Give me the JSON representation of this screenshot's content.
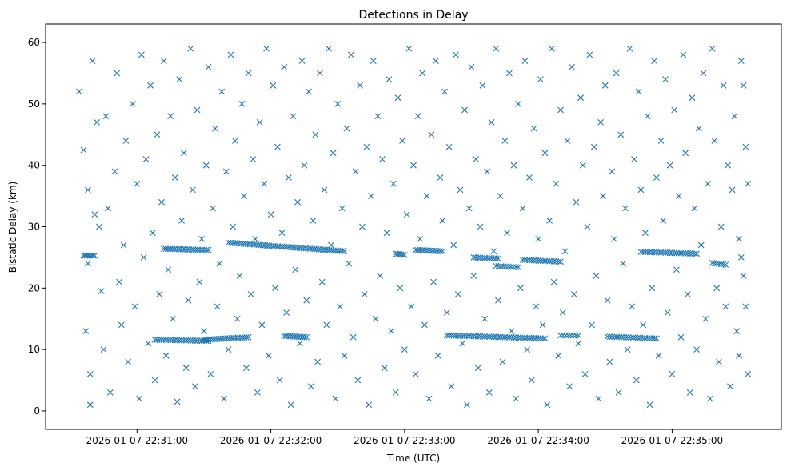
{
  "chart_data": {
    "type": "scatter",
    "title": "Detections in Delay",
    "xlabel": "Time (UTC)",
    "ylabel": "Bistatic Delay (km)",
    "x_unit": "seconds after 2026-01-07 22:30:00",
    "xlim": [
      19,
      349
    ],
    "ylim": [
      -3,
      63
    ],
    "grid": false,
    "marker": "x",
    "color": "#1f77b4",
    "xticks": [
      {
        "value": 60,
        "label": "2026-01-07 22:31:00"
      },
      {
        "value": 120,
        "label": "2026-01-07 22:32:00"
      },
      {
        "value": 180,
        "label": "2026-01-07 22:33:00"
      },
      {
        "value": 240,
        "label": "2026-01-07 22:34:00"
      },
      {
        "value": 300,
        "label": "2026-01-07 22:35:00"
      }
    ],
    "yticks": [
      {
        "value": 0,
        "label": "0"
      },
      {
        "value": 10,
        "label": "10"
      },
      {
        "value": 20,
        "label": "20"
      },
      {
        "value": 30,
        "label": "30"
      },
      {
        "value": 40,
        "label": "40"
      },
      {
        "value": 50,
        "label": "50"
      },
      {
        "value": 60,
        "label": "60"
      }
    ],
    "tracks": [
      {
        "t": [
          36,
          41
        ],
        "y": [
          25.3,
          25.3
        ],
        "n": 8
      },
      {
        "t": [
          72,
          92
        ],
        "y": [
          26.4,
          26.2
        ],
        "n": 22
      },
      {
        "t": [
          101,
          153
        ],
        "y": [
          27.4,
          26.0
        ],
        "n": 55
      },
      {
        "t": [
          176,
          180
        ],
        "y": [
          25.6,
          25.4
        ],
        "n": 6
      },
      {
        "t": [
          185,
          197
        ],
        "y": [
          26.2,
          26.0
        ],
        "n": 14
      },
      {
        "t": [
          211,
          222
        ],
        "y": [
          25.0,
          24.8
        ],
        "n": 12
      },
      {
        "t": [
          221,
          231
        ],
        "y": [
          23.6,
          23.4
        ],
        "n": 10
      },
      {
        "t": [
          233,
          250
        ],
        "y": [
          24.6,
          24.3
        ],
        "n": 18
      },
      {
        "t": [
          286,
          311
        ],
        "y": [
          25.9,
          25.6
        ],
        "n": 26
      },
      {
        "t": [
          318,
          324
        ],
        "y": [
          24.1,
          23.8
        ],
        "n": 7
      },
      {
        "t": [
          68,
          92
        ],
        "y": [
          11.6,
          11.4
        ],
        "n": 25
      },
      {
        "t": [
          90,
          110
        ],
        "y": [
          11.6,
          12.0
        ],
        "n": 22
      },
      {
        "t": [
          126,
          136
        ],
        "y": [
          12.2,
          12.0
        ],
        "n": 12
      },
      {
        "t": [
          199,
          243
        ],
        "y": [
          12.3,
          11.8
        ],
        "n": 45
      },
      {
        "t": [
          250,
          258
        ],
        "y": [
          12.3,
          12.3
        ],
        "n": 8
      },
      {
        "t": [
          271,
          293
        ],
        "y": [
          12.1,
          11.8
        ],
        "n": 22
      }
    ],
    "points": [
      [
        34,
        52
      ],
      [
        36,
        42.5
      ],
      [
        37,
        13
      ],
      [
        38,
        36
      ],
      [
        38,
        24
      ],
      [
        39,
        6
      ],
      [
        39,
        1
      ],
      [
        40,
        57
      ],
      [
        41,
        32
      ],
      [
        42,
        47
      ],
      [
        43,
        30
      ],
      [
        44,
        19.5
      ],
      [
        45,
        10
      ],
      [
        46,
        48
      ],
      [
        47,
        33
      ],
      [
        48,
        3
      ],
      [
        50,
        39
      ],
      [
        51,
        55
      ],
      [
        52,
        21
      ],
      [
        53,
        14
      ],
      [
        54,
        27
      ],
      [
        55,
        44
      ],
      [
        56,
        8
      ],
      [
        58,
        50
      ],
      [
        59,
        17
      ],
      [
        60,
        37
      ],
      [
        61,
        2
      ],
      [
        62,
        58
      ],
      [
        63,
        25
      ],
      [
        64,
        41
      ],
      [
        65,
        11
      ],
      [
        66,
        53
      ],
      [
        67,
        29
      ],
      [
        68,
        5
      ],
      [
        69,
        45
      ],
      [
        70,
        19
      ],
      [
        71,
        34
      ],
      [
        72,
        57
      ],
      [
        73,
        9
      ],
      [
        74,
        23
      ],
      [
        75,
        48
      ],
      [
        76,
        15
      ],
      [
        77,
        38
      ],
      [
        78,
        1.5
      ],
      [
        79,
        54
      ],
      [
        80,
        31
      ],
      [
        81,
        42
      ],
      [
        82,
        7
      ],
      [
        83,
        18
      ],
      [
        84,
        59
      ],
      [
        85,
        36
      ],
      [
        86,
        4
      ],
      [
        87,
        49
      ],
      [
        88,
        21
      ],
      [
        89,
        28
      ],
      [
        90,
        13
      ],
      [
        91,
        40
      ],
      [
        92,
        56
      ],
      [
        93,
        6
      ],
      [
        94,
        33
      ],
      [
        95,
        46
      ],
      [
        96,
        17
      ],
      [
        97,
        24
      ],
      [
        98,
        52
      ],
      [
        99,
        2
      ],
      [
        100,
        39
      ],
      [
        101,
        10
      ],
      [
        102,
        58
      ],
      [
        103,
        30
      ],
      [
        104,
        44
      ],
      [
        105,
        15
      ],
      [
        106,
        22
      ],
      [
        107,
        50
      ],
      [
        108,
        35
      ],
      [
        109,
        7
      ],
      [
        110,
        55
      ],
      [
        111,
        19
      ],
      [
        112,
        41
      ],
      [
        113,
        28
      ],
      [
        114,
        3
      ],
      [
        115,
        47
      ],
      [
        116,
        14
      ],
      [
        117,
        37
      ],
      [
        118,
        59
      ],
      [
        119,
        9
      ],
      [
        120,
        32
      ],
      [
        121,
        53
      ],
      [
        122,
        20
      ],
      [
        123,
        43
      ],
      [
        124,
        5
      ],
      [
        125,
        29
      ],
      [
        126,
        56
      ],
      [
        127,
        16
      ],
      [
        128,
        38
      ],
      [
        129,
        1
      ],
      [
        130,
        48
      ],
      [
        131,
        23
      ],
      [
        132,
        34
      ],
      [
        133,
        11
      ],
      [
        134,
        57
      ],
      [
        135,
        40
      ],
      [
        136,
        18
      ],
      [
        137,
        52
      ],
      [
        138,
        4
      ],
      [
        139,
        31
      ],
      [
        140,
        45
      ],
      [
        141,
        8
      ],
      [
        142,
        55
      ],
      [
        143,
        21
      ],
      [
        144,
        36
      ],
      [
        145,
        14
      ],
      [
        146,
        59
      ],
      [
        147,
        27
      ],
      [
        148,
        42
      ],
      [
        149,
        2
      ],
      [
        150,
        50
      ],
      [
        151,
        17
      ],
      [
        152,
        33
      ],
      [
        153,
        9
      ],
      [
        154,
        46
      ],
      [
        155,
        24
      ],
      [
        156,
        58
      ],
      [
        157,
        12
      ],
      [
        158,
        39
      ],
      [
        159,
        5
      ],
      [
        160,
        53
      ],
      [
        161,
        30
      ],
      [
        162,
        19
      ],
      [
        163,
        43
      ],
      [
        164,
        1
      ],
      [
        165,
        35
      ],
      [
        166,
        57
      ],
      [
        167,
        15
      ],
      [
        168,
        48
      ],
      [
        169,
        22
      ],
      [
        170,
        41
      ],
      [
        171,
        7
      ],
      [
        172,
        29
      ],
      [
        173,
        54
      ],
      [
        174,
        13
      ],
      [
        175,
        37
      ],
      [
        176,
        3
      ],
      [
        177,
        51
      ],
      [
        178,
        20
      ],
      [
        179,
        44
      ],
      [
        180,
        10
      ],
      [
        181,
        32
      ],
      [
        182,
        59
      ],
      [
        183,
        17
      ],
      [
        184,
        40
      ],
      [
        185,
        6
      ],
      [
        186,
        48
      ],
      [
        187,
        28
      ],
      [
        188,
        55
      ],
      [
        189,
        14
      ],
      [
        190,
        35
      ],
      [
        191,
        2
      ],
      [
        192,
        45
      ],
      [
        193,
        21
      ],
      [
        194,
        57
      ],
      [
        195,
        9
      ],
      [
        196,
        38
      ],
      [
        197,
        31
      ],
      [
        198,
        52
      ],
      [
        199,
        16
      ],
      [
        200,
        43
      ],
      [
        201,
        4
      ],
      [
        202,
        27
      ],
      [
        203,
        58
      ],
      [
        204,
        19
      ],
      [
        205,
        36
      ],
      [
        206,
        11
      ],
      [
        207,
        49
      ],
      [
        208,
        1
      ],
      [
        209,
        33
      ],
      [
        210,
        56
      ],
      [
        211,
        22
      ],
      [
        212,
        41
      ],
      [
        213,
        7
      ],
      [
        214,
        30
      ],
      [
        215,
        53
      ],
      [
        216,
        15
      ],
      [
        217,
        39
      ],
      [
        218,
        3
      ],
      [
        219,
        47
      ],
      [
        220,
        26
      ],
      [
        221,
        59
      ],
      [
        222,
        18
      ],
      [
        223,
        35
      ],
      [
        224,
        8
      ],
      [
        225,
        44
      ],
      [
        226,
        29
      ],
      [
        227,
        55
      ],
      [
        228,
        13
      ],
      [
        229,
        40
      ],
      [
        230,
        2
      ],
      [
        231,
        50
      ],
      [
        232,
        20
      ],
      [
        233,
        33
      ],
      [
        234,
        57
      ],
      [
        235,
        10
      ],
      [
        236,
        38
      ],
      [
        237,
        5
      ],
      [
        238,
        46
      ],
      [
        239,
        17
      ],
      [
        240,
        28
      ],
      [
        241,
        54
      ],
      [
        242,
        14
      ],
      [
        243,
        42
      ],
      [
        244,
        1
      ],
      [
        245,
        31
      ],
      [
        246,
        59
      ],
      [
        247,
        21
      ],
      [
        248,
        37
      ],
      [
        249,
        9
      ],
      [
        250,
        49
      ],
      [
        251,
        16
      ],
      [
        252,
        26
      ],
      [
        253,
        44
      ],
      [
        254,
        4
      ],
      [
        255,
        56
      ],
      [
        256,
        19
      ],
      [
        257,
        34
      ],
      [
        258,
        11
      ],
      [
        259,
        51
      ],
      [
        260,
        40
      ],
      [
        261,
        6
      ],
      [
        262,
        30
      ],
      [
        263,
        58
      ],
      [
        264,
        14
      ],
      [
        265,
        43
      ],
      [
        266,
        22
      ],
      [
        267,
        2
      ],
      [
        268,
        47
      ],
      [
        269,
        35
      ],
      [
        270,
        53
      ],
      [
        271,
        18
      ],
      [
        272,
        8
      ],
      [
        273,
        39
      ],
      [
        274,
        28
      ],
      [
        275,
        55
      ],
      [
        276,
        3
      ],
      [
        277,
        45
      ],
      [
        278,
        24
      ],
      [
        279,
        33
      ],
      [
        280,
        10
      ],
      [
        281,
        59
      ],
      [
        282,
        17
      ],
      [
        283,
        41
      ],
      [
        284,
        5
      ],
      [
        285,
        52
      ],
      [
        286,
        36
      ],
      [
        287,
        14
      ],
      [
        288,
        29
      ],
      [
        289,
        48
      ],
      [
        290,
        1
      ],
      [
        291,
        20
      ],
      [
        292,
        57
      ],
      [
        293,
        38
      ],
      [
        294,
        9
      ],
      [
        295,
        44
      ],
      [
        296,
        31
      ],
      [
        297,
        54
      ],
      [
        298,
        16
      ],
      [
        299,
        40
      ],
      [
        300,
        6
      ],
      [
        301,
        49
      ],
      [
        302,
        23
      ],
      [
        303,
        35
      ],
      [
        304,
        12
      ],
      [
        305,
        58
      ],
      [
        306,
        42
      ],
      [
        307,
        19
      ],
      [
        308,
        3
      ],
      [
        309,
        51
      ],
      [
        310,
        33
      ],
      [
        311,
        10
      ],
      [
        312,
        46
      ],
      [
        313,
        27
      ],
      [
        314,
        55
      ],
      [
        315,
        15
      ],
      [
        316,
        37
      ],
      [
        317,
        2
      ],
      [
        318,
        59
      ],
      [
        319,
        44
      ],
      [
        320,
        20
      ],
      [
        321,
        8
      ],
      [
        322,
        30
      ],
      [
        323,
        53
      ],
      [
        324,
        17
      ],
      [
        325,
        40
      ],
      [
        326,
        4
      ],
      [
        327,
        36
      ],
      [
        328,
        48
      ],
      [
        329,
        13
      ],
      [
        330,
        28
      ],
      [
        331,
        57
      ],
      [
        332,
        22
      ],
      [
        333,
        43
      ],
      [
        334,
        6
      ],
      [
        334,
        37
      ],
      [
        333,
        17
      ],
      [
        332,
        53
      ],
      [
        331,
        25
      ],
      [
        330,
        9
      ]
    ]
  }
}
